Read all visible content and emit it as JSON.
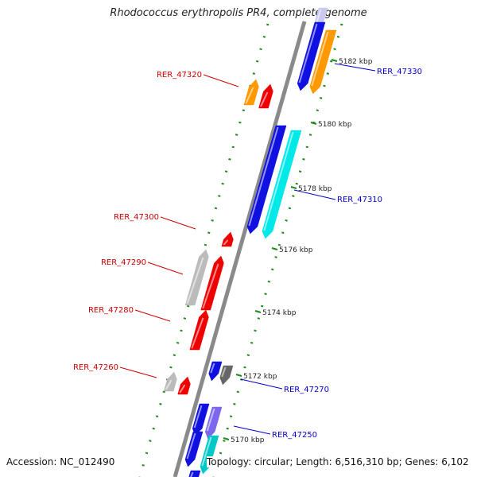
{
  "title": "Rhodococcus erythropolis PR4, complete genome",
  "accession": "Accession: NC_012490",
  "topology": "Topology: circular; Length: 6,516,310 bp; Genes: 6,102",
  "colors": {
    "backbone": "#8a8a8a",
    "dots": "#1e8a1e",
    "ticks": "#1e8a1e",
    "forward_label": "#0000cc",
    "reverse_label": "#cc0000"
  },
  "coordinates": [
    {
      "label": "5182 kbp",
      "kbp": 5182
    },
    {
      "label": "5180 kbp",
      "kbp": 5180
    },
    {
      "label": "5178 kbp",
      "kbp": 5178
    },
    {
      "label": "5176 kbp",
      "kbp": 5176
    },
    {
      "label": "5174 kbp",
      "kbp": 5174
    },
    {
      "label": "5172 kbp",
      "kbp": 5172
    },
    {
      "label": "5170 kbp",
      "kbp": 5170
    }
  ],
  "gene_labels": [
    {
      "id": "RER_47330",
      "strand": "forward"
    },
    {
      "id": "RER_47320",
      "strand": "reverse"
    },
    {
      "id": "RER_47310",
      "strand": "forward"
    },
    {
      "id": "RER_47300",
      "strand": "reverse"
    },
    {
      "id": "RER_47290",
      "strand": "reverse"
    },
    {
      "id": "RER_47280",
      "strand": "reverse"
    },
    {
      "id": "RER_47270",
      "strand": "forward"
    },
    {
      "id": "RER_47260",
      "strand": "reverse"
    },
    {
      "id": "RER_47250",
      "strand": "forward"
    }
  ],
  "genes": [
    {
      "name": "gene-top-lavender",
      "color": "#c8c8f0"
    },
    {
      "name": "gene-top-blue",
      "color": "#1010e0"
    },
    {
      "name": "gene-rer47330",
      "color": "#ff9900"
    },
    {
      "name": "gene-rer47320-orange",
      "color": "#ff9900"
    },
    {
      "name": "gene-rer47320-red",
      "color": "#ee0000"
    },
    {
      "name": "gene-rer47310-blue",
      "color": "#1010e0"
    },
    {
      "name": "gene-rer47310-cyan",
      "color": "#00e8e8"
    },
    {
      "name": "gene-rer47300",
      "color": "#ee0000"
    },
    {
      "name": "gene-rer47290-gray",
      "color": "#bbbbbb"
    },
    {
      "name": "gene-rer47290-red",
      "color": "#ee0000"
    },
    {
      "name": "gene-rer47280",
      "color": "#ee0000"
    },
    {
      "name": "gene-rer47270-blue",
      "color": "#1010e0"
    },
    {
      "name": "gene-rer47270-gray",
      "color": "#666666"
    },
    {
      "name": "gene-rer47260-gray",
      "color": "#bbbbbb"
    },
    {
      "name": "gene-rer47260-red",
      "color": "#ee0000"
    },
    {
      "name": "gene-rer47250-blue",
      "color": "#1010e0"
    },
    {
      "name": "gene-rer47250-purple",
      "color": "#7b68ee"
    },
    {
      "name": "gene-bottom-blue",
      "color": "#1010e0"
    },
    {
      "name": "gene-bottom-cyan",
      "color": "#00c8c8"
    },
    {
      "name": "gene-bottom-blue-2",
      "color": "#1010e0"
    }
  ]
}
